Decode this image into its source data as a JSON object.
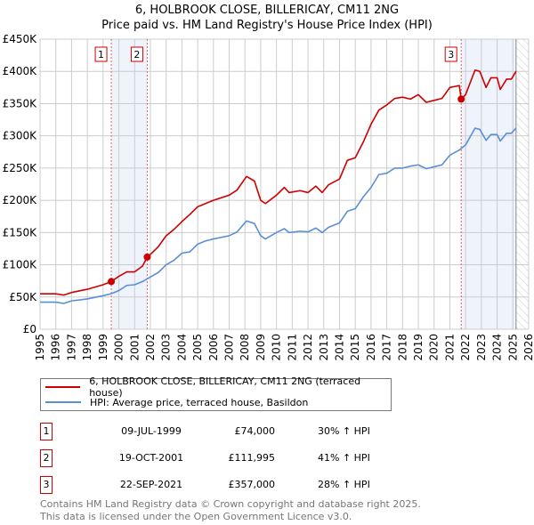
{
  "title": "6, HOLBROOK CLOSE, BILLERICAY, CM11 2NG",
  "subtitle": "Price paid vs. HM Land Registry's House Price Index (HPI)",
  "chart_data": {
    "type": "line",
    "xlim": [
      1995,
      2026
    ],
    "ylim": [
      0,
      450000
    ],
    "x_ticks": [
      "1995",
      "1996",
      "1997",
      "1998",
      "1999",
      "2000",
      "2001",
      "2002",
      "2003",
      "2004",
      "2005",
      "2006",
      "2007",
      "2008",
      "2009",
      "2010",
      "2011",
      "2012",
      "2013",
      "2014",
      "2015",
      "2016",
      "2017",
      "2018",
      "2019",
      "2020",
      "2021",
      "2022",
      "2023",
      "2024",
      "2025",
      "2026"
    ],
    "y_ticks": [
      {
        "v": 0,
        "label": "£0"
      },
      {
        "v": 50000,
        "label": "£50K"
      },
      {
        "v": 100000,
        "label": "£100K"
      },
      {
        "v": 150000,
        "label": "£150K"
      },
      {
        "v": 200000,
        "label": "£200K"
      },
      {
        "v": 250000,
        "label": "£250K"
      },
      {
        "v": 300000,
        "label": "£300K"
      },
      {
        "v": 350000,
        "label": "£350K"
      },
      {
        "v": 400000,
        "label": "£400K"
      },
      {
        "v": 450000,
        "label": "£450K"
      }
    ],
    "grid": true,
    "series": [
      {
        "name": "6, HOLBROOK CLOSE, BILLERICAY, CM11 2NG (terraced house)",
        "color": "#cc0000",
        "points": [
          [
            1995,
            55000
          ],
          [
            1996,
            55000
          ],
          [
            1996.5,
            53000
          ],
          [
            1997,
            57000
          ],
          [
            1998,
            62000
          ],
          [
            1999,
            69000
          ],
          [
            1999.52,
            74000
          ],
          [
            2000,
            82000
          ],
          [
            2000.5,
            89000
          ],
          [
            2001,
            89000
          ],
          [
            2001.5,
            98000
          ],
          [
            2001.8,
            111995
          ],
          [
            2002,
            116000
          ],
          [
            2002.5,
            128000
          ],
          [
            2003,
            145000
          ],
          [
            2003.5,
            155000
          ],
          [
            2004,
            167000
          ],
          [
            2004.5,
            178000
          ],
          [
            2005,
            190000
          ],
          [
            2006,
            200000
          ],
          [
            2007,
            208000
          ],
          [
            2007.5,
            216000
          ],
          [
            2008.1,
            237000
          ],
          [
            2008.6,
            230000
          ],
          [
            2009,
            200000
          ],
          [
            2009.3,
            195000
          ],
          [
            2010,
            208000
          ],
          [
            2010.5,
            220000
          ],
          [
            2010.8,
            212000
          ],
          [
            2011.5,
            215000
          ],
          [
            2012,
            212000
          ],
          [
            2012.5,
            222000
          ],
          [
            2012.9,
            212000
          ],
          [
            2013.3,
            224000
          ],
          [
            2014,
            233000
          ],
          [
            2014.5,
            262000
          ],
          [
            2015,
            266000
          ],
          [
            2015.5,
            290000
          ],
          [
            2016,
            318000
          ],
          [
            2016.5,
            340000
          ],
          [
            2017,
            348000
          ],
          [
            2017.5,
            358000
          ],
          [
            2018,
            360000
          ],
          [
            2018.5,
            357000
          ],
          [
            2019,
            364000
          ],
          [
            2019.5,
            352000
          ],
          [
            2020,
            355000
          ],
          [
            2020.5,
            358000
          ],
          [
            2021,
            375000
          ],
          [
            2021.6,
            378000
          ],
          [
            2021.72,
            357000
          ],
          [
            2022,
            364000
          ],
          [
            2022.6,
            402000
          ],
          [
            2022.9,
            400000
          ],
          [
            2023.3,
            375000
          ],
          [
            2023.6,
            390000
          ],
          [
            2024,
            390000
          ],
          [
            2024.2,
            372000
          ],
          [
            2024.6,
            388000
          ],
          [
            2024.9,
            388000
          ],
          [
            2025.2,
            400000
          ]
        ]
      },
      {
        "name": "HPI: Average price, terraced house, Basildon",
        "color": "#5b8fd4",
        "points": [
          [
            1995,
            42000
          ],
          [
            1996,
            42000
          ],
          [
            1996.5,
            40000
          ],
          [
            1997,
            44000
          ],
          [
            1998,
            47000
          ],
          [
            1999,
            52000
          ],
          [
            1999.5,
            55000
          ],
          [
            2000,
            60000
          ],
          [
            2000.5,
            68000
          ],
          [
            2001,
            69000
          ],
          [
            2001.5,
            74000
          ],
          [
            2002,
            81000
          ],
          [
            2002.5,
            88000
          ],
          [
            2003,
            100000
          ],
          [
            2003.5,
            107000
          ],
          [
            2004,
            118000
          ],
          [
            2004.5,
            120000
          ],
          [
            2005,
            132000
          ],
          [
            2005.5,
            137000
          ],
          [
            2006,
            140000
          ],
          [
            2007,
            145000
          ],
          [
            2007.5,
            151000
          ],
          [
            2008.1,
            168000
          ],
          [
            2008.6,
            164000
          ],
          [
            2009,
            145000
          ],
          [
            2009.3,
            140000
          ],
          [
            2010,
            150000
          ],
          [
            2010.5,
            156000
          ],
          [
            2010.8,
            150000
          ],
          [
            2011.5,
            152000
          ],
          [
            2012,
            151000
          ],
          [
            2012.5,
            157000
          ],
          [
            2012.9,
            150000
          ],
          [
            2013.3,
            158000
          ],
          [
            2014,
            165000
          ],
          [
            2014.5,
            183000
          ],
          [
            2015,
            187000
          ],
          [
            2015.5,
            205000
          ],
          [
            2016,
            220000
          ],
          [
            2016.5,
            240000
          ],
          [
            2017,
            242000
          ],
          [
            2017.5,
            250000
          ],
          [
            2018,
            250000
          ],
          [
            2018.5,
            253000
          ],
          [
            2019,
            255000
          ],
          [
            2019.5,
            249000
          ],
          [
            2020,
            252000
          ],
          [
            2020.5,
            255000
          ],
          [
            2021,
            270000
          ],
          [
            2021.6,
            278000
          ],
          [
            2022,
            286000
          ],
          [
            2022.6,
            312000
          ],
          [
            2022.9,
            310000
          ],
          [
            2023.3,
            293000
          ],
          [
            2023.6,
            302000
          ],
          [
            2024,
            302000
          ],
          [
            2024.2,
            292000
          ],
          [
            2024.6,
            304000
          ],
          [
            2024.9,
            304000
          ],
          [
            2025.2,
            312000
          ]
        ]
      }
    ],
    "sales": [
      {
        "id": "1",
        "x": 1999.52,
        "y": 74000
      },
      {
        "id": "2",
        "x": 2001.8,
        "y": 111995
      },
      {
        "id": "3",
        "x": 2021.72,
        "y": 357000
      }
    ],
    "shaded_ranges": [
      [
        1999.52,
        2001.8
      ],
      [
        2021.72,
        2025.2
      ]
    ],
    "hatched_range": [
      2025.2,
      2026
    ]
  },
  "legend": {
    "items": [
      {
        "label": "6, HOLBROOK CLOSE, BILLERICAY, CM11 2NG (terraced house)",
        "color": "#cc0000"
      },
      {
        "label": "HPI: Average price, terraced house, Basildon",
        "color": "#5b8fd4"
      }
    ]
  },
  "table": [
    {
      "num": "1",
      "date": "09-JUL-1999",
      "price": "£74,000",
      "hpi": "30% ↑ HPI"
    },
    {
      "num": "2",
      "date": "19-OCT-2001",
      "price": "£111,995",
      "hpi": "41% ↑ HPI"
    },
    {
      "num": "3",
      "date": "22-SEP-2021",
      "price": "£357,000",
      "hpi": "28% ↑ HPI"
    }
  ],
  "footer": [
    "Contains HM Land Registry data © Crown copyright and database right 2025.",
    "This data is licensed under the Open Government Licence v3.0."
  ]
}
